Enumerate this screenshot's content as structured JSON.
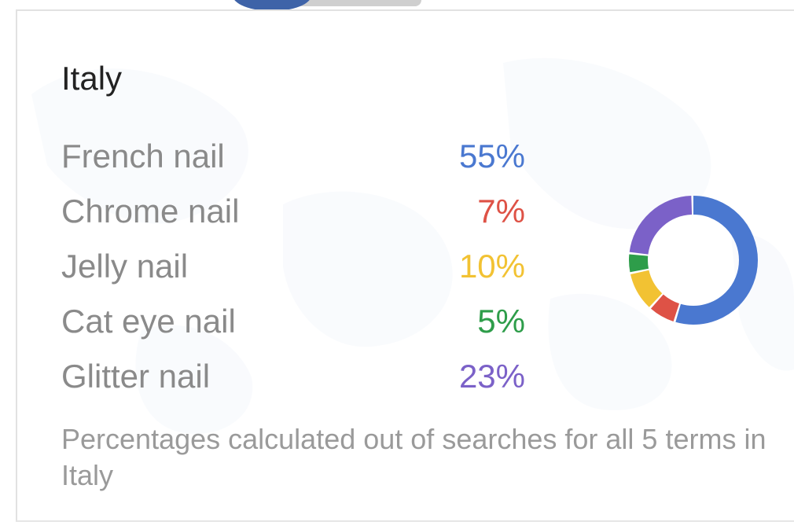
{
  "region": {
    "name": "Italy"
  },
  "terms": [
    {
      "label": "French nail",
      "value_text": "55%",
      "share": 55,
      "color": "#4a78d0"
    },
    {
      "label": "Chrome nail",
      "value_text": "7%",
      "share": 7,
      "color": "#de5246"
    },
    {
      "label": "Jelly nail",
      "value_text": "10%",
      "share": 10,
      "color": "#f2c233"
    },
    {
      "label": "Cat eye nail",
      "value_text": "5%",
      "share": 5,
      "color": "#2e9d4a"
    },
    {
      "label": "Glitter nail",
      "value_text": "23%",
      "share": 23,
      "color": "#7b61c8"
    }
  ],
  "footnote": "Percentages calculated out of searches for all 5 terms in Italy",
  "colors": {
    "title": "#222222",
    "label": "#8a8a8a",
    "footnote": "#9a9a9a",
    "map": "#dbe6f3"
  }
}
